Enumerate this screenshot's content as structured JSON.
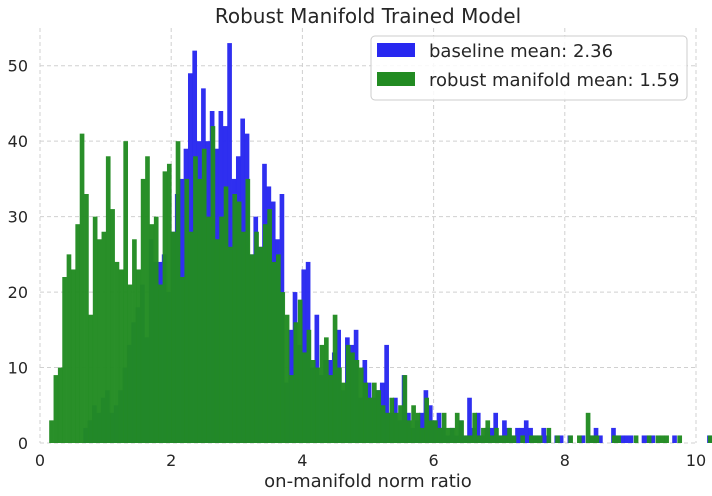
{
  "chart_data": {
    "type": "histogram",
    "title": "Robust Manifold Trained Model",
    "xlabel": "on-manifold norm ratio",
    "ylabel": "",
    "xlim": [
      0,
      10
    ],
    "ylim": [
      0,
      55
    ],
    "xticks": [
      "0",
      "2",
      "4",
      "6",
      "8",
      "10"
    ],
    "yticks": [
      "0",
      "10",
      "20",
      "30",
      "40",
      "50"
    ],
    "grid": true,
    "legend_position": "top-right",
    "bin_width": 0.0665,
    "series": [
      {
        "name": "baseline mean: 2.36",
        "color": "#2828f0",
        "x_start": 0.66,
        "counts": [
          2,
          3,
          5,
          4,
          6,
          7,
          4,
          5,
          7,
          10,
          13,
          16,
          18,
          21,
          14,
          27,
          24,
          24,
          25,
          20,
          28,
          33,
          35,
          39,
          49,
          52,
          40,
          47,
          40,
          44,
          39,
          44,
          42,
          53,
          35,
          38,
          43,
          41,
          25,
          30,
          26,
          37,
          34,
          32,
          27,
          33,
          8,
          15,
          20,
          13,
          23,
          24,
          10,
          17,
          9,
          11,
          11,
          12,
          15,
          7,
          14,
          13,
          15,
          6,
          11,
          8,
          6,
          7,
          8,
          13,
          4,
          6,
          3,
          9,
          4,
          2,
          3,
          4,
          7,
          5,
          3,
          4,
          2,
          1,
          2,
          1,
          3,
          1,
          6,
          2,
          4,
          1,
          2,
          2,
          4,
          1,
          3,
          2,
          1,
          2,
          2,
          3,
          2,
          1,
          1,
          2,
          1,
          0,
          1,
          1,
          0,
          1,
          0,
          0,
          1,
          0,
          1,
          2,
          1,
          0,
          0,
          2,
          1,
          1,
          1,
          1,
          0,
          0,
          1,
          1,
          1,
          0,
          0,
          0,
          0,
          1,
          0,
          0,
          0,
          0,
          0,
          0,
          0,
          1,
          0,
          0,
          0,
          0,
          0,
          0,
          0,
          0,
          0,
          0,
          1,
          1,
          0,
          0,
          0,
          0,
          0,
          0,
          0,
          0,
          1,
          0,
          0,
          0,
          0,
          0,
          0,
          0,
          0,
          0,
          0,
          0,
          0,
          0,
          0,
          0,
          0,
          1
        ]
      },
      {
        "name": "robust manifold mean: 1.59",
        "color": "#228b22",
        "x_start": 0.14,
        "counts": [
          3,
          9,
          10,
          22,
          25,
          23,
          29,
          41,
          33,
          17,
          30,
          27,
          28,
          38,
          31,
          24,
          23,
          40,
          21,
          27,
          23,
          35,
          38,
          29,
          30,
          21,
          36,
          37,
          28,
          40,
          22,
          35,
          28,
          38,
          35,
          39,
          30,
          42,
          27,
          30,
          34,
          26,
          33,
          32,
          28,
          35,
          25,
          28,
          26,
          29,
          31,
          24,
          25,
          20,
          17,
          9,
          16,
          19,
          12,
          15,
          11,
          10,
          13,
          14,
          9,
          17,
          10,
          8,
          13,
          12,
          11,
          10,
          8,
          6,
          8,
          7,
          5,
          4,
          6,
          4,
          5,
          9,
          3,
          5,
          4,
          2,
          6,
          3,
          3,
          2,
          4,
          2,
          2,
          4,
          3,
          1,
          1,
          4,
          1,
          2,
          3,
          1,
          2,
          1,
          1,
          2,
          1,
          0,
          1,
          0,
          1,
          1,
          1,
          0,
          2,
          0,
          1,
          0,
          0,
          1,
          0,
          1,
          0,
          4,
          1,
          1,
          0,
          0,
          0,
          1,
          1,
          0,
          0,
          0,
          1,
          0,
          0,
          1,
          0,
          1,
          1,
          1,
          0,
          0,
          1,
          0,
          0,
          0,
          0,
          0,
          0,
          1,
          0,
          0,
          0,
          0,
          0,
          0,
          1,
          0,
          0,
          1,
          0,
          0,
          1,
          1,
          0,
          0,
          0,
          0,
          0,
          0
        ]
      }
    ]
  }
}
